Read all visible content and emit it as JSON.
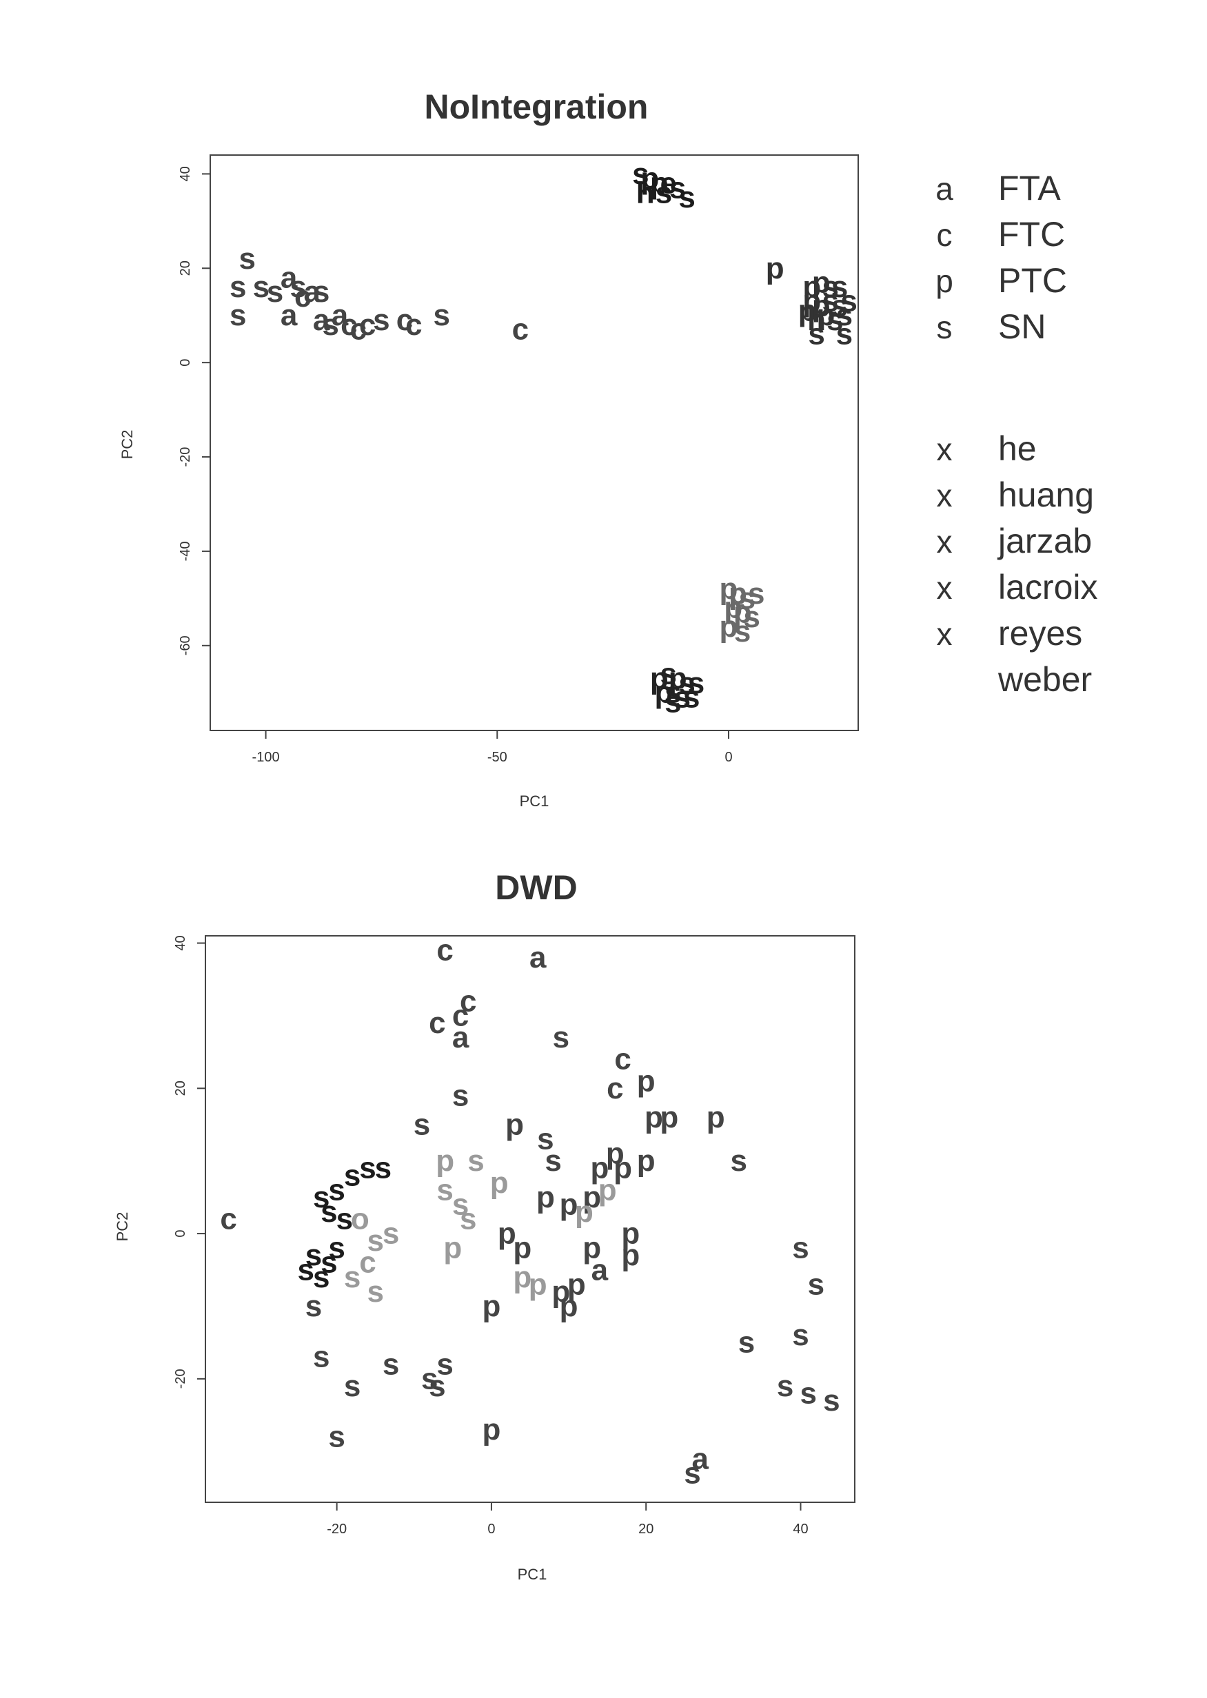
{
  "chart_data": [
    {
      "type": "scatter",
      "title": "NoIntegration",
      "xlabel": "PC1",
      "ylabel": "PC2",
      "xlim": [
        -112,
        28
      ],
      "ylim": [
        -78,
        44
      ],
      "xticks": [
        -100,
        -50,
        0
      ],
      "yticks": [
        40,
        20,
        0,
        -20,
        -40,
        -60
      ],
      "legend": {
        "placement": "right",
        "subtypes": [
          {
            "key": "a",
            "label": "FTA"
          },
          {
            "key": "c",
            "label": "FTC"
          },
          {
            "key": "p",
            "label": "PTC"
          },
          {
            "key": "s",
            "label": "SN"
          }
        ],
        "datasets": [
          {
            "key": "x",
            "label": "he",
            "color": "#9a9a9a"
          },
          {
            "key": "x",
            "label": "huang",
            "color": "#444444"
          },
          {
            "key": "x",
            "label": "jarzab",
            "color": "#1c1c1c"
          },
          {
            "key": "x",
            "label": "lacroix",
            "color": "#333333"
          },
          {
            "key": "x",
            "label": "reyes",
            "color": "#6a6a6a"
          },
          {
            "key": "",
            "label": "weber",
            "color": "#222222"
          }
        ]
      },
      "series": [
        {
          "name": "huang",
          "color": "#444444",
          "points": [
            {
              "x": -106,
              "y": 16,
              "label": "s"
            },
            {
              "x": -104,
              "y": 22,
              "label": "s"
            },
            {
              "x": -101,
              "y": 16,
              "label": "s"
            },
            {
              "x": -98,
              "y": 15,
              "label": "s"
            },
            {
              "x": -95,
              "y": 18,
              "label": "a"
            },
            {
              "x": -93,
              "y": 16,
              "label": "s"
            },
            {
              "x": -92,
              "y": 14,
              "label": "c"
            },
            {
              "x": -90,
              "y": 15,
              "label": "a"
            },
            {
              "x": -88,
              "y": 15,
              "label": "s"
            },
            {
              "x": -106,
              "y": 10,
              "label": "s"
            },
            {
              "x": -95,
              "y": 10,
              "label": "a"
            },
            {
              "x": -88,
              "y": 9,
              "label": "a"
            },
            {
              "x": -86,
              "y": 8,
              "label": "s"
            },
            {
              "x": -84,
              "y": 10,
              "label": "a"
            },
            {
              "x": -82,
              "y": 8,
              "label": "c"
            },
            {
              "x": -80,
              "y": 7,
              "label": "c"
            },
            {
              "x": -78,
              "y": 8,
              "label": "c"
            },
            {
              "x": -75,
              "y": 9,
              "label": "s"
            },
            {
              "x": -70,
              "y": 9,
              "label": "c"
            },
            {
              "x": -68,
              "y": 8,
              "label": "c"
            },
            {
              "x": -62,
              "y": 10,
              "label": "s"
            },
            {
              "x": -45,
              "y": 7,
              "label": "c"
            }
          ]
        },
        {
          "name": "jarzab",
          "color": "#1c1c1c",
          "points": [
            {
              "x": -19,
              "y": 40,
              "label": "s"
            },
            {
              "x": -17,
              "y": 39,
              "label": "p"
            },
            {
              "x": -15,
              "y": 38,
              "label": "p"
            },
            {
              "x": -13,
              "y": 38,
              "label": "e"
            },
            {
              "x": -18,
              "y": 36,
              "label": "h"
            },
            {
              "x": -14,
              "y": 36,
              "label": "s"
            },
            {
              "x": -11,
              "y": 37,
              "label": "s"
            },
            {
              "x": -9,
              "y": 35,
              "label": "s"
            }
          ]
        },
        {
          "name": "lacroix",
          "color": "#333333",
          "points": [
            {
              "x": 10,
              "y": 20,
              "label": "p"
            },
            {
              "x": 18,
              "y": 16,
              "label": "p"
            },
            {
              "x": 20,
              "y": 17,
              "label": "p"
            },
            {
              "x": 22,
              "y": 16,
              "label": "s"
            },
            {
              "x": 24,
              "y": 16,
              "label": "s"
            },
            {
              "x": 18,
              "y": 13,
              "label": "p"
            },
            {
              "x": 20,
              "y": 12,
              "label": "p"
            },
            {
              "x": 22,
              "y": 13,
              "label": "s"
            },
            {
              "x": 24,
              "y": 12,
              "label": "s"
            },
            {
              "x": 26,
              "y": 13,
              "label": "s"
            },
            {
              "x": 17,
              "y": 11,
              "label": "p"
            },
            {
              "x": 19,
              "y": 9,
              "label": "h"
            },
            {
              "x": 21,
              "y": 10,
              "label": "p"
            },
            {
              "x": 23,
              "y": 9,
              "label": "s"
            },
            {
              "x": 25,
              "y": 10,
              "label": "s"
            },
            {
              "x": 19,
              "y": 6,
              "label": "s"
            },
            {
              "x": 25,
              "y": 6,
              "label": "s"
            }
          ]
        },
        {
          "name": "reyes",
          "color": "#6a6a6a",
          "points": [
            {
              "x": 0,
              "y": -48,
              "label": "p"
            },
            {
              "x": 2,
              "y": -49,
              "label": "p"
            },
            {
              "x": 4,
              "y": -50,
              "label": "s"
            },
            {
              "x": 6,
              "y": -49,
              "label": "s"
            },
            {
              "x": 1,
              "y": -52,
              "label": "p"
            },
            {
              "x": 3,
              "y": -53,
              "label": "p"
            },
            {
              "x": 5,
              "y": -54,
              "label": "s"
            },
            {
              "x": 0,
              "y": -56,
              "label": "p"
            },
            {
              "x": 3,
              "y": -57,
              "label": "s"
            }
          ]
        },
        {
          "name": "weber",
          "color": "#222222",
          "points": [
            {
              "x": -15,
              "y": -67,
              "label": "p"
            },
            {
              "x": -13,
              "y": -66,
              "label": "s"
            },
            {
              "x": -11,
              "y": -67,
              "label": "p"
            },
            {
              "x": -9,
              "y": -68,
              "label": "s"
            },
            {
              "x": -7,
              "y": -68,
              "label": "s"
            },
            {
              "x": -14,
              "y": -70,
              "label": "p"
            },
            {
              "x": -12,
              "y": -70,
              "label": "s"
            },
            {
              "x": -10,
              "y": -71,
              "label": "s"
            },
            {
              "x": -8,
              "y": -71,
              "label": "s"
            },
            {
              "x": -12,
              "y": -72,
              "label": "s"
            }
          ]
        }
      ]
    },
    {
      "type": "scatter",
      "title": "DWD",
      "xlabel": "PC1",
      "ylabel": "PC2",
      "xlim": [
        -37,
        47
      ],
      "ylim": [
        -37,
        41
      ],
      "xticks": [
        -20,
        0,
        20,
        40
      ],
      "yticks": [
        40,
        20,
        0,
        -20
      ],
      "series": [
        {
          "name": "huang",
          "color": "#444444",
          "points": [
            {
              "x": -34,
              "y": 2,
              "label": "c"
            },
            {
              "x": -6,
              "y": 39,
              "label": "c"
            },
            {
              "x": 6,
              "y": 38,
              "label": "a"
            },
            {
              "x": -3,
              "y": 32,
              "label": "c"
            },
            {
              "x": -4,
              "y": 30,
              "label": "c"
            },
            {
              "x": -7,
              "y": 29,
              "label": "c"
            },
            {
              "x": -4,
              "y": 27,
              "label": "a"
            },
            {
              "x": 9,
              "y": 27,
              "label": "s"
            },
            {
              "x": 17,
              "y": 24,
              "label": "c"
            },
            {
              "x": 16,
              "y": 20,
              "label": "c"
            },
            {
              "x": 20,
              "y": 21,
              "label": "p"
            },
            {
              "x": -4,
              "y": 19,
              "label": "s"
            },
            {
              "x": -9,
              "y": 15,
              "label": "s"
            },
            {
              "x": 3,
              "y": 15,
              "label": "p"
            },
            {
              "x": 7,
              "y": 13,
              "label": "s"
            },
            {
              "x": 21,
              "y": 16,
              "label": "p"
            },
            {
              "x": 23,
              "y": 16,
              "label": "p"
            },
            {
              "x": 29,
              "y": 16,
              "label": "p"
            },
            {
              "x": 32,
              "y": 10,
              "label": "s"
            },
            {
              "x": 20,
              "y": 10,
              "label": "p"
            },
            {
              "x": 16,
              "y": 11,
              "label": "p"
            },
            {
              "x": 14,
              "y": 9,
              "label": "p"
            },
            {
              "x": 17,
              "y": 9,
              "label": "p"
            },
            {
              "x": 8,
              "y": 10,
              "label": "s"
            },
            {
              "x": 7,
              "y": 5,
              "label": "p"
            },
            {
              "x": 10,
              "y": 4,
              "label": "p"
            },
            {
              "x": 13,
              "y": 5,
              "label": "p"
            },
            {
              "x": 18,
              "y": 0,
              "label": "p"
            },
            {
              "x": 18,
              "y": -3,
              "label": "p"
            },
            {
              "x": 13,
              "y": -2,
              "label": "p"
            },
            {
              "x": 14,
              "y": -5,
              "label": "a"
            },
            {
              "x": 2,
              "y": 0,
              "label": "p"
            },
            {
              "x": 4,
              "y": -2,
              "label": "p"
            },
            {
              "x": 9,
              "y": -8,
              "label": "p"
            },
            {
              "x": 11,
              "y": -7,
              "label": "p"
            },
            {
              "x": 10,
              "y": -10,
              "label": "p"
            },
            {
              "x": 0,
              "y": -10,
              "label": "p"
            },
            {
              "x": 0,
              "y": -27,
              "label": "p"
            },
            {
              "x": -23,
              "y": -10,
              "label": "s"
            },
            {
              "x": -22,
              "y": -17,
              "label": "s"
            },
            {
              "x": -18,
              "y": -21,
              "label": "s"
            },
            {
              "x": -13,
              "y": -18,
              "label": "s"
            },
            {
              "x": -8,
              "y": -20,
              "label": "s"
            },
            {
              "x": -7,
              "y": -21,
              "label": "s"
            },
            {
              "x": -6,
              "y": -18,
              "label": "s"
            },
            {
              "x": -20,
              "y": -28,
              "label": "s"
            },
            {
              "x": 40,
              "y": -2,
              "label": "s"
            },
            {
              "x": 42,
              "y": -7,
              "label": "s"
            },
            {
              "x": 33,
              "y": -15,
              "label": "s"
            },
            {
              "x": 40,
              "y": -14,
              "label": "s"
            },
            {
              "x": 38,
              "y": -21,
              "label": "s"
            },
            {
              "x": 41,
              "y": -22,
              "label": "s"
            },
            {
              "x": 44,
              "y": -23,
              "label": "s"
            },
            {
              "x": 27,
              "y": -31,
              "label": "a"
            },
            {
              "x": 26,
              "y": -33,
              "label": "s"
            }
          ]
        },
        {
          "name": "jarzab",
          "color": "#1c1c1c",
          "points": [
            {
              "x": -22,
              "y": 5,
              "label": "s"
            },
            {
              "x": -20,
              "y": 6,
              "label": "s"
            },
            {
              "x": -18,
              "y": 8,
              "label": "s"
            },
            {
              "x": -16,
              "y": 9,
              "label": "s"
            },
            {
              "x": -14,
              "y": 9,
              "label": "s"
            },
            {
              "x": -21,
              "y": 3,
              "label": "s"
            },
            {
              "x": -19,
              "y": 2,
              "label": "s"
            },
            {
              "x": -23,
              "y": -3,
              "label": "s"
            },
            {
              "x": -21,
              "y": -4,
              "label": "s"
            },
            {
              "x": -22,
              "y": -6,
              "label": "s"
            },
            {
              "x": -24,
              "y": -5,
              "label": "s"
            },
            {
              "x": -20,
              "y": -2,
              "label": "s"
            }
          ]
        },
        {
          "name": "he",
          "color": "#9a9a9a",
          "points": [
            {
              "x": -6,
              "y": 10,
              "label": "p"
            },
            {
              "x": -2,
              "y": 10,
              "label": "s"
            },
            {
              "x": 1,
              "y": 7,
              "label": "p"
            },
            {
              "x": -6,
              "y": 6,
              "label": "s"
            },
            {
              "x": -4,
              "y": 4,
              "label": "s"
            },
            {
              "x": -3,
              "y": 2,
              "label": "s"
            },
            {
              "x": -5,
              "y": -2,
              "label": "p"
            },
            {
              "x": -17,
              "y": 2,
              "label": "o"
            },
            {
              "x": -15,
              "y": -1,
              "label": "s"
            },
            {
              "x": -16,
              "y": -4,
              "label": "c"
            },
            {
              "x": -18,
              "y": -6,
              "label": "s"
            },
            {
              "x": -15,
              "y": -8,
              "label": "s"
            },
            {
              "x": -13,
              "y": 0,
              "label": "s"
            },
            {
              "x": 12,
              "y": 3,
              "label": "p"
            },
            {
              "x": 15,
              "y": 6,
              "label": "p"
            },
            {
              "x": 4,
              "y": -6,
              "label": "p"
            },
            {
              "x": 6,
              "y": -7,
              "label": "p"
            }
          ]
        }
      ]
    }
  ]
}
